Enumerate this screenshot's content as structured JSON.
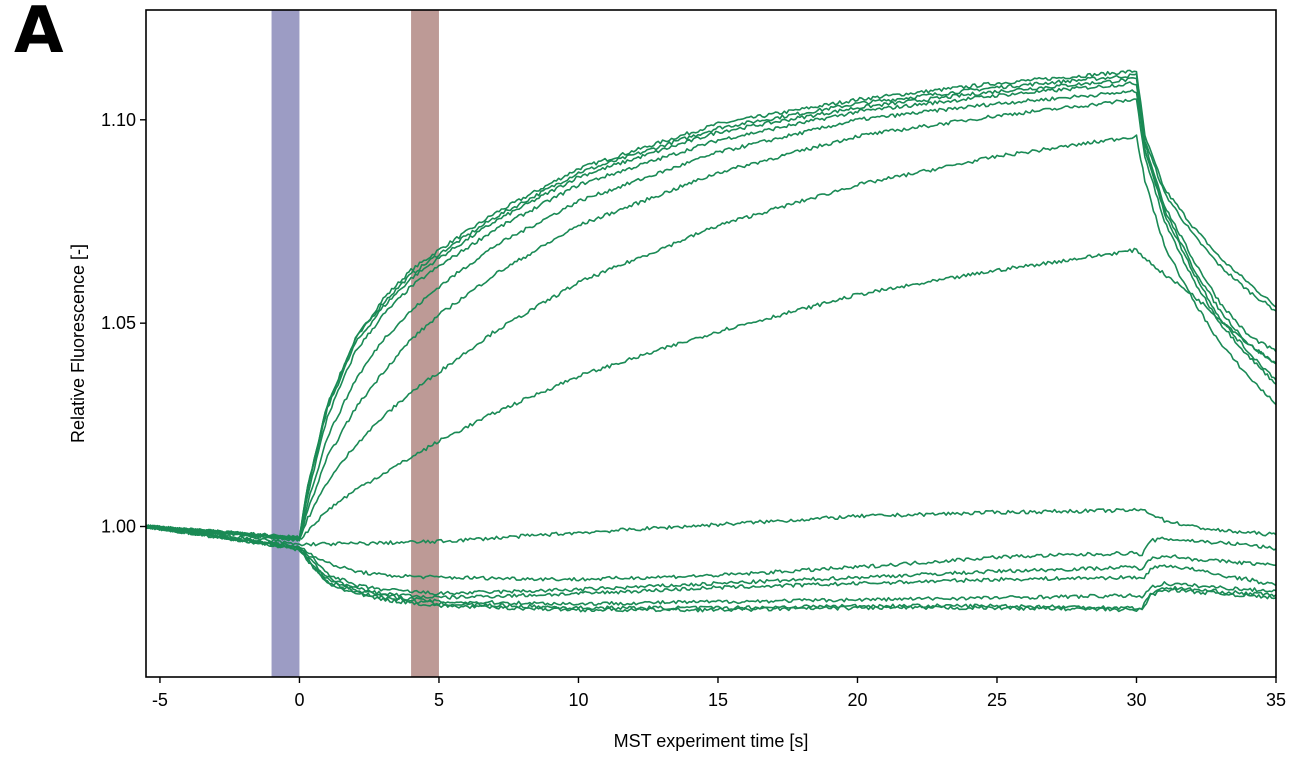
{
  "panel_label": "A",
  "chart_data": {
    "type": "line",
    "title": "",
    "xlabel": "MST experiment time [s]",
    "ylabel": "Relative Fluorescence [-]",
    "xlim": [
      -5.5,
      35
    ],
    "ylim": [
      0.963,
      1.127
    ],
    "x_ticks": [
      -5,
      0,
      5,
      10,
      15,
      20,
      25,
      30,
      35
    ],
    "x_tick_labels": [
      "-5",
      "0",
      "5",
      "10",
      "15",
      "20",
      "25",
      "30",
      "35"
    ],
    "y_ticks": [
      1.0,
      1.05,
      1.1
    ],
    "y_tick_labels": [
      "1.00",
      "1.05",
      "1.10"
    ],
    "grid": false,
    "line_color": "#1a8a55",
    "highlight_regions": [
      {
        "x_start": -1,
        "x_end": 0,
        "color": "#9c9cc4"
      },
      {
        "x_start": 4,
        "x_end": 5,
        "color": "#bd9a96"
      }
    ],
    "series": [
      {
        "values": [
          [
            -5.5,
            1.0
          ],
          [
            -1,
            0.9978
          ],
          [
            0,
            0.9973
          ],
          [
            0.3,
            1.01
          ],
          [
            1,
            1.03
          ],
          [
            2,
            1.046
          ],
          [
            3,
            1.056
          ],
          [
            4,
            1.063
          ],
          [
            5,
            1.068
          ],
          [
            7,
            1.077
          ],
          [
            10,
            1.088
          ],
          [
            15,
            1.099
          ],
          [
            20,
            1.105
          ],
          [
            25,
            1.109
          ],
          [
            30,
            1.112
          ],
          [
            30.3,
            1.096
          ],
          [
            31,
            1.083
          ],
          [
            32,
            1.074
          ],
          [
            33,
            1.066
          ],
          [
            34,
            1.06
          ],
          [
            35,
            1.054
          ]
        ]
      },
      {
        "values": [
          [
            -5.5,
            1.0
          ],
          [
            -1,
            0.9977
          ],
          [
            0,
            0.9972
          ],
          [
            0.3,
            1.01
          ],
          [
            1,
            1.03
          ],
          [
            2,
            1.046
          ],
          [
            3,
            1.055
          ],
          [
            4,
            1.062
          ],
          [
            5,
            1.067
          ],
          [
            7,
            1.076
          ],
          [
            10,
            1.087
          ],
          [
            15,
            1.098
          ],
          [
            20,
            1.104
          ],
          [
            25,
            1.108
          ],
          [
            30,
            1.111
          ],
          [
            30.3,
            1.095
          ],
          [
            31,
            1.082
          ],
          [
            32,
            1.072
          ],
          [
            33,
            1.064
          ],
          [
            34,
            1.058
          ],
          [
            35,
            1.053
          ]
        ]
      },
      {
        "values": [
          [
            -5.5,
            1.0
          ],
          [
            -1,
            0.9976
          ],
          [
            0,
            0.9971
          ],
          [
            0.3,
            1.009
          ],
          [
            1,
            1.029
          ],
          [
            2,
            1.045
          ],
          [
            3,
            1.054
          ],
          [
            4,
            1.061
          ],
          [
            5,
            1.066
          ],
          [
            7,
            1.075
          ],
          [
            10,
            1.086
          ],
          [
            15,
            1.097
          ],
          [
            20,
            1.103
          ],
          [
            25,
            1.107
          ],
          [
            30,
            1.11
          ],
          [
            30.3,
            1.094
          ],
          [
            31,
            1.079
          ],
          [
            32,
            1.066
          ],
          [
            33,
            1.055
          ],
          [
            34,
            1.047
          ],
          [
            35,
            1.043
          ]
        ]
      },
      {
        "values": [
          [
            -5.5,
            1.0
          ],
          [
            -1,
            0.9976
          ],
          [
            0,
            0.997
          ],
          [
            0.3,
            1.008
          ],
          [
            1,
            1.027
          ],
          [
            2,
            1.043
          ],
          [
            3,
            1.052
          ],
          [
            4,
            1.059
          ],
          [
            5,
            1.064
          ],
          [
            7,
            1.073
          ],
          [
            10,
            1.084
          ],
          [
            15,
            1.095
          ],
          [
            20,
            1.102
          ],
          [
            25,
            1.106
          ],
          [
            30,
            1.109
          ],
          [
            30.3,
            1.093
          ],
          [
            31,
            1.078
          ],
          [
            32,
            1.064
          ],
          [
            33,
            1.053
          ],
          [
            34,
            1.045
          ],
          [
            35,
            1.04
          ]
        ]
      },
      {
        "values": [
          [
            -5.5,
            1.0
          ],
          [
            -1,
            0.9975
          ],
          [
            0,
            0.997
          ],
          [
            0.3,
            1.006
          ],
          [
            1,
            1.022
          ],
          [
            2,
            1.036
          ],
          [
            3,
            1.046
          ],
          [
            4,
            1.053
          ],
          [
            5,
            1.059
          ],
          [
            7,
            1.069
          ],
          [
            10,
            1.08
          ],
          [
            15,
            1.092
          ],
          [
            20,
            1.1
          ],
          [
            25,
            1.104
          ],
          [
            30,
            1.107
          ],
          [
            30.3,
            1.093
          ],
          [
            31,
            1.077
          ],
          [
            32,
            1.063
          ],
          [
            33,
            1.051
          ],
          [
            34,
            1.043
          ],
          [
            35,
            1.036
          ]
        ]
      },
      {
        "values": [
          [
            -5.5,
            1.0
          ],
          [
            -1,
            0.9975
          ],
          [
            0,
            0.9969
          ],
          [
            0.3,
            1.004
          ],
          [
            1,
            1.017
          ],
          [
            2,
            1.029
          ],
          [
            3,
            1.038
          ],
          [
            4,
            1.046
          ],
          [
            5,
            1.052
          ],
          [
            7,
            1.062
          ],
          [
            10,
            1.074
          ],
          [
            15,
            1.087
          ],
          [
            20,
            1.096
          ],
          [
            25,
            1.101
          ],
          [
            30,
            1.105
          ],
          [
            30.3,
            1.091
          ],
          [
            31,
            1.075
          ],
          [
            32,
            1.061
          ],
          [
            33,
            1.05
          ],
          [
            34,
            1.042
          ],
          [
            35,
            1.035
          ]
        ]
      },
      {
        "values": [
          [
            -5.5,
            1.0
          ],
          [
            -1,
            0.9974
          ],
          [
            0,
            0.9968
          ],
          [
            0.3,
            1.002
          ],
          [
            1,
            1.011
          ],
          [
            2,
            1.02
          ],
          [
            3,
            1.027
          ],
          [
            4,
            1.033
          ],
          [
            5,
            1.038
          ],
          [
            7,
            1.048
          ],
          [
            10,
            1.06
          ],
          [
            15,
            1.074
          ],
          [
            20,
            1.084
          ],
          [
            25,
            1.091
          ],
          [
            30,
            1.096
          ],
          [
            30.3,
            1.085
          ],
          [
            31,
            1.069
          ],
          [
            32,
            1.056
          ],
          [
            33,
            1.045
          ],
          [
            34,
            1.037
          ],
          [
            35,
            1.03
          ]
        ]
      },
      {
        "values": [
          [
            -5.5,
            1.0
          ],
          [
            -1,
            0.9973
          ],
          [
            0,
            0.9967
          ],
          [
            0.3,
            0.999
          ],
          [
            1,
            1.004
          ],
          [
            2,
            1.009
          ],
          [
            3,
            1.013
          ],
          [
            4,
            1.017
          ],
          [
            5,
            1.021
          ],
          [
            7,
            1.028
          ],
          [
            10,
            1.037
          ],
          [
            15,
            1.048
          ],
          [
            20,
            1.057
          ],
          [
            25,
            1.063
          ],
          [
            30,
            1.068
          ],
          [
            30.3,
            1.066
          ],
          [
            31,
            1.062
          ],
          [
            32,
            1.057
          ],
          [
            33,
            1.051
          ],
          [
            34,
            1.045
          ],
          [
            35,
            1.04
          ]
        ]
      },
      {
        "values": [
          [
            -5.5,
            1.0
          ],
          [
            -1,
            0.9965
          ],
          [
            0,
            0.9955
          ],
          [
            0.5,
            0.9957
          ],
          [
            2,
            0.9958
          ],
          [
            5,
            0.9963
          ],
          [
            10,
            0.9985
          ],
          [
            15,
            1.0005
          ],
          [
            20,
            1.0025
          ],
          [
            25,
            1.0035
          ],
          [
            30,
            1.004
          ],
          [
            30.3,
            1.004
          ],
          [
            31,
            1.0015
          ],
          [
            32,
            1.0
          ],
          [
            33,
            0.999
          ],
          [
            34,
            0.9985
          ],
          [
            35,
            0.998
          ]
        ]
      },
      {
        "values": [
          [
            -5.5,
            1.0
          ],
          [
            -1,
            0.996
          ],
          [
            0,
            0.995
          ],
          [
            0.5,
            0.993
          ],
          [
            1,
            0.991
          ],
          [
            2,
            0.989
          ],
          [
            3,
            0.988
          ],
          [
            5,
            0.9875
          ],
          [
            10,
            0.987
          ],
          [
            15,
            0.988
          ],
          [
            20,
            0.99
          ],
          [
            25,
            0.9925
          ],
          [
            30,
            0.9935
          ],
          [
            30.2,
            0.993
          ],
          [
            30.5,
            0.9965
          ],
          [
            31,
            0.997
          ],
          [
            32,
            0.9965
          ],
          [
            33,
            0.996
          ],
          [
            34,
            0.9955
          ],
          [
            35,
            0.9945
          ]
        ]
      },
      {
        "values": [
          [
            -5.5,
            1.0
          ],
          [
            -1,
            0.9958
          ],
          [
            0,
            0.9948
          ],
          [
            0.5,
            0.992
          ],
          [
            1,
            0.9885
          ],
          [
            2,
            0.9855
          ],
          [
            3,
            0.9845
          ],
          [
            5,
            0.9835
          ],
          [
            10,
            0.9845
          ],
          [
            15,
            0.986
          ],
          [
            20,
            0.9875
          ],
          [
            25,
            0.989
          ],
          [
            30,
            0.99
          ],
          [
            30.2,
            0.9895
          ],
          [
            30.5,
            0.992
          ],
          [
            31,
            0.993
          ],
          [
            32,
            0.992
          ],
          [
            33,
            0.9915
          ],
          [
            34,
            0.991
          ],
          [
            35,
            0.9905
          ]
        ]
      },
      {
        "values": [
          [
            -5.5,
            1.0
          ],
          [
            -1,
            0.9957
          ],
          [
            0,
            0.9946
          ],
          [
            0.5,
            0.991
          ],
          [
            1,
            0.9875
          ],
          [
            2,
            0.9848
          ],
          [
            3,
            0.9835
          ],
          [
            5,
            0.9825
          ],
          [
            10,
            0.9835
          ],
          [
            15,
            0.985
          ],
          [
            20,
            0.986
          ],
          [
            25,
            0.987
          ],
          [
            30,
            0.9875
          ],
          [
            30.2,
            0.987
          ],
          [
            30.5,
            0.9895
          ],
          [
            31,
            0.9905
          ],
          [
            32,
            0.9895
          ],
          [
            33,
            0.988
          ],
          [
            34,
            0.987
          ],
          [
            35,
            0.9855
          ]
        ]
      },
      {
        "values": [
          [
            -5.5,
            1.0
          ],
          [
            -1,
            0.9956
          ],
          [
            0,
            0.9945
          ],
          [
            0.5,
            0.9905
          ],
          [
            1,
            0.987
          ],
          [
            2,
            0.9845
          ],
          [
            3,
            0.983
          ],
          [
            5,
            0.9815
          ],
          [
            10,
            0.981
          ],
          [
            15,
            0.9815
          ],
          [
            20,
            0.982
          ],
          [
            25,
            0.9825
          ],
          [
            30,
            0.983
          ],
          [
            30.2,
            0.9828
          ],
          [
            30.5,
            0.985
          ],
          [
            31,
            0.986
          ],
          [
            32,
            0.9855
          ],
          [
            33,
            0.985
          ],
          [
            34,
            0.9845
          ],
          [
            35,
            0.9842
          ]
        ]
      },
      {
        "values": [
          [
            -5.5,
            1.0
          ],
          [
            -1,
            0.9955
          ],
          [
            0,
            0.9944
          ],
          [
            0.5,
            0.99
          ],
          [
            1,
            0.9865
          ],
          [
            2,
            0.984
          ],
          [
            3,
            0.9825
          ],
          [
            5,
            0.981
          ],
          [
            10,
            0.98
          ],
          [
            15,
            0.98
          ],
          [
            20,
            0.9805
          ],
          [
            25,
            0.9805
          ],
          [
            30,
            0.98
          ],
          [
            30.2,
            0.98
          ],
          [
            30.5,
            0.9835
          ],
          [
            31,
            0.985
          ],
          [
            32,
            0.9845
          ],
          [
            33,
            0.984
          ],
          [
            34,
            0.9835
          ],
          [
            35,
            0.9832
          ]
        ]
      },
      {
        "values": [
          [
            -5.5,
            1.0
          ],
          [
            -1,
            0.9955
          ],
          [
            0,
            0.9943
          ],
          [
            0.5,
            0.9898
          ],
          [
            1,
            0.986
          ],
          [
            2,
            0.9835
          ],
          [
            3,
            0.982
          ],
          [
            5,
            0.9805
          ],
          [
            10,
            0.9795
          ],
          [
            15,
            0.9795
          ],
          [
            20,
            0.98
          ],
          [
            25,
            0.98
          ],
          [
            30,
            0.9795
          ],
          [
            30.2,
            0.9795
          ],
          [
            30.5,
            0.983
          ],
          [
            31,
            0.9845
          ],
          [
            32,
            0.984
          ],
          [
            33,
            0.9835
          ],
          [
            34,
            0.983
          ],
          [
            35,
            0.9825
          ]
        ]
      }
    ]
  }
}
